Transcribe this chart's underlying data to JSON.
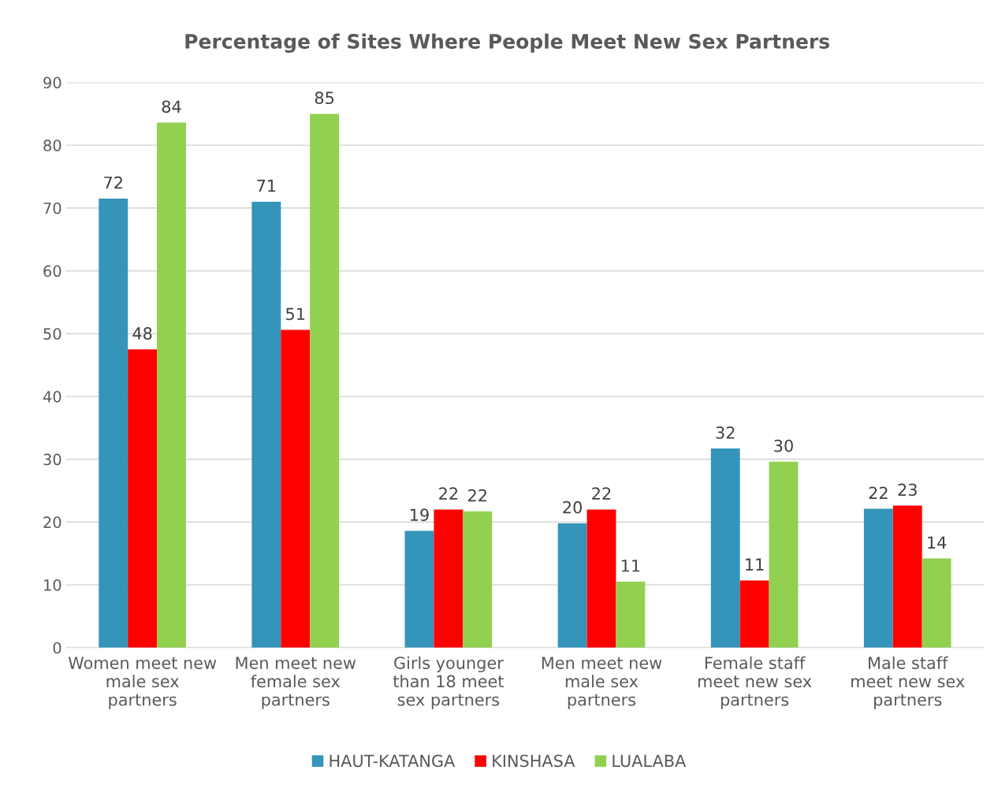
{
  "chart_data": {
    "type": "bar",
    "title": "Percentage of Sites Where People Meet New Sex Partners",
    "categories": [
      "Women meet new male sex partners",
      "Men meet new female sex partners",
      "Girls younger than 18 meet sex partners",
      "Men meet new male sex partners",
      "Female staff meet new sex partners",
      "Male staff meet new sex partners"
    ],
    "series": [
      {
        "name": "HAUT-KATANGA",
        "color": "#3494ba",
        "values": [
          71.5,
          71,
          18.6,
          19.8,
          31.7,
          22.1
        ],
        "value_labels": [
          "72",
          "71",
          "19",
          "20",
          "32",
          "22"
        ]
      },
      {
        "name": "KINSHASA",
        "color": "#ff0000",
        "values": [
          47.5,
          50.6,
          22,
          22,
          10.7,
          22.6
        ],
        "value_labels": [
          "48",
          "51",
          "22",
          "22",
          "11",
          "23"
        ]
      },
      {
        "name": "LUALABA",
        "color": "#92d050",
        "values": [
          83.6,
          85,
          21.7,
          10.5,
          29.6,
          14.2
        ],
        "value_labels": [
          "84",
          "85",
          "22",
          "11",
          "30",
          "14"
        ]
      }
    ],
    "ylim": [
      0,
      90
    ],
    "yticks": [
      0,
      10,
      20,
      30,
      40,
      50,
      60,
      70,
      80,
      90
    ],
    "grid": "y",
    "legend": "bottom"
  }
}
